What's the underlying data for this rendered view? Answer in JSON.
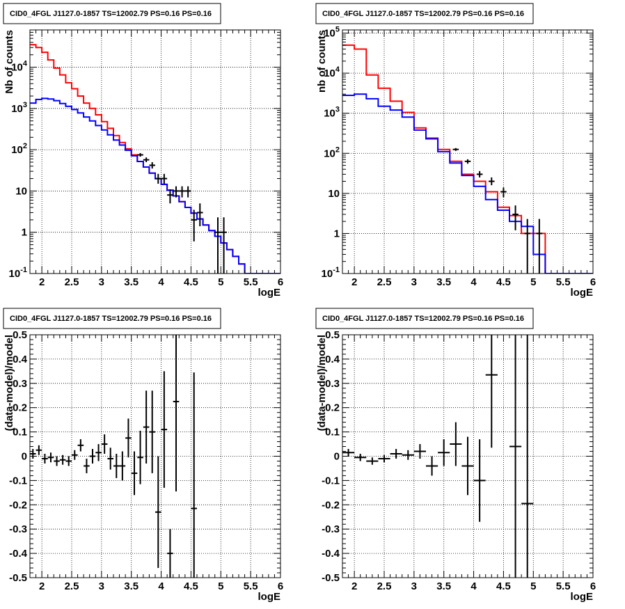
{
  "chart_data": [
    {
      "type": "step-histogram",
      "title": "CID0_4FGL J1127.0-1857 TS=12002.79 PS=0.16 PS=0.16",
      "xlabel": "logE",
      "ylabel": "Nb of counts",
      "xlim": [
        1.8,
        6.0
      ],
      "ylim": [
        0.1,
        80000
      ],
      "log_y": true,
      "grid": true,
      "x_ticks": [
        "2",
        "2.5",
        "3",
        "3.5",
        "4",
        "4.5",
        "5",
        "5.5",
        "6"
      ],
      "y_ticks": [
        "10^-1",
        "1",
        "10",
        "10^2",
        "10^3",
        "10^4"
      ],
      "bin_edges": [
        1.8,
        1.9,
        2.0,
        2.1,
        2.2,
        2.3,
        2.4,
        2.5,
        2.6,
        2.7,
        2.8,
        2.9,
        3.0,
        3.1,
        3.2,
        3.3,
        3.4,
        3.5,
        3.6,
        3.7,
        3.8,
        3.9,
        4.0,
        4.1,
        4.2,
        4.3,
        4.4,
        4.5,
        4.6,
        4.7,
        4.8,
        4.9,
        5.0,
        5.1,
        5.2,
        5.3,
        5.4,
        5.5,
        5.6,
        5.7,
        5.8,
        5.9,
        6.0
      ],
      "series": [
        {
          "color": "#ff0000",
          "values": [
            35000,
            30000,
            23000,
            15000,
            9500,
            6500,
            4200,
            3000,
            2000,
            1350,
            1000,
            700,
            480,
            330,
            220,
            150,
            105,
            75,
            52,
            38,
            27,
            20,
            14.5,
            10.5,
            7.6,
            5.5,
            4,
            2.9,
            2.1,
            1.5,
            1.1,
            0.8,
            0.55,
            0.38,
            0.26,
            0.17,
            0.1,
            0.1,
            0.1,
            0.1,
            0.1,
            0.1
          ]
        },
        {
          "color": "#0000ff",
          "values": [
            1350,
            1650,
            1750,
            1700,
            1550,
            1320,
            1130,
            940,
            780,
            620,
            500,
            385,
            300,
            230,
            172,
            130,
            97,
            71,
            52,
            38,
            27,
            20,
            14.5,
            10.5,
            7.6,
            5.5,
            4,
            2.9,
            2.1,
            1.5,
            1.1,
            0.8,
            0.55,
            0.38,
            0.26,
            0.17,
            0.1,
            0.1,
            0.1,
            0.1,
            0.1,
            0.1
          ]
        }
      ],
      "points": [
        {
          "x": 3.65,
          "y": 75,
          "ylo": 68,
          "yhi": 83
        },
        {
          "x": 3.75,
          "y": 57,
          "ylo": 50,
          "yhi": 65
        },
        {
          "x": 3.85,
          "y": 42,
          "ylo": 35,
          "yhi": 50
        },
        {
          "x": 3.95,
          "y": 20,
          "ylo": 15,
          "yhi": 26
        },
        {
          "x": 4.05,
          "y": 20,
          "ylo": 15,
          "yhi": 26
        },
        {
          "x": 4.15,
          "y": 8,
          "ylo": 5,
          "yhi": 11
        },
        {
          "x": 4.25,
          "y": 10,
          "ylo": 7,
          "yhi": 13
        },
        {
          "x": 4.35,
          "y": 10,
          "ylo": 7,
          "yhi": 13
        },
        {
          "x": 4.45,
          "y": 10,
          "ylo": 7,
          "yhi": 13
        },
        {
          "x": 4.55,
          "y": 2,
          "ylo": 0.6,
          "yhi": 3.5
        },
        {
          "x": 4.65,
          "y": 3,
          "ylo": 1.4,
          "yhi": 5
        },
        {
          "x": 4.95,
          "y": 1,
          "ylo": 0.1,
          "yhi": 2.3
        },
        {
          "x": 5.05,
          "y": 1,
          "ylo": 0.1,
          "yhi": 2.3
        }
      ]
    },
    {
      "type": "step-histogram",
      "title": "CID0_4FGL J1127.0-1857 TS=12002.79 PS=0.16 PS=0.16",
      "xlabel": "logE",
      "ylabel": "nb of counts",
      "xlim": [
        1.8,
        6.0
      ],
      "ylim": [
        0.1,
        120000
      ],
      "log_y": true,
      "grid": true,
      "x_ticks": [
        "2",
        "2.5",
        "3",
        "3.5",
        "4",
        "4.5",
        "5",
        "5.5",
        "6"
      ],
      "y_ticks": [
        "10^-1",
        "1",
        "10",
        "10^2",
        "10^3",
        "10^4",
        "10^5"
      ],
      "bin_edges": [
        1.8,
        2.0,
        2.2,
        2.4,
        2.6,
        2.8,
        3.0,
        3.2,
        3.4,
        3.6,
        3.8,
        4.0,
        4.2,
        4.4,
        4.6,
        4.8,
        5.0,
        5.2,
        5.4,
        5.6,
        5.8,
        6.0
      ],
      "series": [
        {
          "color": "#ff0000",
          "values": [
            50000,
            40000,
            9000,
            4200,
            2000,
            1050,
            430,
            240,
            125,
            63,
            30,
            20,
            11,
            4.5,
            2.8,
            1,
            1,
            0.1,
            0.1,
            0.1,
            0.1
          ]
        },
        {
          "color": "#0000ff",
          "values": [
            2800,
            3000,
            2300,
            1500,
            1200,
            800,
            380,
            230,
            110,
            57,
            28,
            15,
            7,
            3.8,
            2,
            1.5,
            0.3,
            0.1,
            0.1,
            0.1,
            0.1
          ]
        }
      ],
      "points": [
        {
          "x": 3.7,
          "y": 125,
          "ylo": 115,
          "yhi": 135
        },
        {
          "x": 3.9,
          "y": 63,
          "ylo": 55,
          "yhi": 71
        },
        {
          "x": 4.1,
          "y": 30,
          "ylo": 25,
          "yhi": 36
        },
        {
          "x": 4.3,
          "y": 20,
          "ylo": 16,
          "yhi": 25
        },
        {
          "x": 4.5,
          "y": 11,
          "ylo": 8,
          "yhi": 14
        },
        {
          "x": 4.7,
          "y": 3,
          "ylo": 1.2,
          "yhi": 5
        },
        {
          "x": 4.9,
          "y": 1,
          "ylo": 0.1,
          "yhi": 2.3
        },
        {
          "x": 5.1,
          "y": 1,
          "ylo": 0.1,
          "yhi": 2.3
        }
      ]
    },
    {
      "type": "scatter-errorbars",
      "title": "CID0_4FGL J1127.0-1857 TS=12002.79 PS=0.16 PS=0.16",
      "xlabel": "logE",
      "ylabel": "(data-model)/model",
      "xlim": [
        1.8,
        6.0
      ],
      "ylim": [
        -0.5,
        0.5
      ],
      "grid": true,
      "x_ticks": [
        "2",
        "2.5",
        "3",
        "3.5",
        "4",
        "4.5",
        "5",
        "5.5",
        "6"
      ],
      "y_ticks": [
        "-0.5",
        "-0.4",
        "-0.3",
        "-0.2",
        "-0.1",
        "0",
        "0.1",
        "0.2",
        "0.3",
        "0.4",
        "0.5"
      ],
      "points": [
        {
          "x": 1.85,
          "y": 0.01,
          "xerr": 0.05,
          "yerr": 0.02
        },
        {
          "x": 1.95,
          "y": 0.025,
          "xerr": 0.05,
          "yerr": 0.02
        },
        {
          "x": 2.05,
          "y": -0.01,
          "xerr": 0.05,
          "yerr": 0.02
        },
        {
          "x": 2.15,
          "y": -0.005,
          "xerr": 0.05,
          "yerr": 0.02
        },
        {
          "x": 2.25,
          "y": -0.02,
          "xerr": 0.05,
          "yerr": 0.02
        },
        {
          "x": 2.35,
          "y": -0.015,
          "xerr": 0.05,
          "yerr": 0.02
        },
        {
          "x": 2.45,
          "y": -0.02,
          "xerr": 0.05,
          "yerr": 0.02
        },
        {
          "x": 2.55,
          "y": 0.005,
          "xerr": 0.05,
          "yerr": 0.02
        },
        {
          "x": 2.65,
          "y": 0.045,
          "xerr": 0.05,
          "yerr": 0.025
        },
        {
          "x": 2.75,
          "y": -0.04,
          "xerr": 0.05,
          "yerr": 0.03
        },
        {
          "x": 2.85,
          "y": 0.0,
          "xerr": 0.05,
          "yerr": 0.03
        },
        {
          "x": 2.95,
          "y": 0.015,
          "xerr": 0.05,
          "yerr": 0.035
        },
        {
          "x": 3.05,
          "y": 0.05,
          "xerr": 0.05,
          "yerr": 0.04
        },
        {
          "x": 3.15,
          "y": -0.01,
          "xerr": 0.05,
          "yerr": 0.045
        },
        {
          "x": 3.25,
          "y": -0.04,
          "xerr": 0.05,
          "yerr": 0.05
        },
        {
          "x": 3.35,
          "y": -0.04,
          "xerr": 0.05,
          "yerr": 0.06
        },
        {
          "x": 3.45,
          "y": 0.075,
          "xerr": 0.05,
          "yerr": 0.08
        },
        {
          "x": 3.55,
          "y": -0.07,
          "xerr": 0.05,
          "yerr": 0.09
        },
        {
          "x": 3.65,
          "y": -0.005,
          "xerr": 0.05,
          "yerr": 0.11
        },
        {
          "x": 3.75,
          "y": 0.12,
          "xerr": 0.05,
          "yerr": 0.15
        },
        {
          "x": 3.85,
          "y": 0.1,
          "xerr": 0.05,
          "yerr": 0.17
        },
        {
          "x": 3.95,
          "y": -0.23,
          "xerr": 0.05,
          "yerr": 0.23
        },
        {
          "x": 4.05,
          "y": 0.11,
          "xerr": 0.05,
          "yerr": 0.24
        },
        {
          "x": 4.15,
          "y": -0.4,
          "xerr": 0.05,
          "yerr": 0.1
        },
        {
          "x": 4.25,
          "y": 0.225,
          "xerr": 0.05,
          "yerr": 0.37
        },
        {
          "x": 4.55,
          "y": -0.215,
          "xerr": 0.05,
          "yerr": 0.56
        }
      ]
    },
    {
      "type": "scatter-errorbars",
      "title": "CID0_4FGL J1127.0-1857 TS=12002.79 PS=0.16 PS=0.16",
      "xlabel": "logE",
      "ylabel": "(data-model)/model",
      "xlim": [
        1.8,
        6.0
      ],
      "ylim": [
        -0.5,
        0.5
      ],
      "grid": true,
      "x_ticks": [
        "2",
        "2.5",
        "3",
        "3.5",
        "4",
        "4.5",
        "5",
        "5.5",
        "6"
      ],
      "y_ticks": [
        "-0.5",
        "-0.4",
        "-0.3",
        "-0.2",
        "-0.1",
        "0",
        "0.1",
        "0.2",
        "0.3",
        "0.4",
        "0.5"
      ],
      "points": [
        {
          "x": 1.9,
          "y": 0.015,
          "xerr": 0.1,
          "yerr": 0.015
        },
        {
          "x": 2.1,
          "y": -0.005,
          "xerr": 0.1,
          "yerr": 0.015
        },
        {
          "x": 2.3,
          "y": -0.02,
          "xerr": 0.1,
          "yerr": 0.015
        },
        {
          "x": 2.5,
          "y": -0.01,
          "xerr": 0.1,
          "yerr": 0.015
        },
        {
          "x": 2.7,
          "y": 0.01,
          "xerr": 0.1,
          "yerr": 0.02
        },
        {
          "x": 2.9,
          "y": 0.005,
          "xerr": 0.1,
          "yerr": 0.02
        },
        {
          "x": 3.1,
          "y": 0.02,
          "xerr": 0.1,
          "yerr": 0.03
        },
        {
          "x": 3.3,
          "y": -0.04,
          "xerr": 0.1,
          "yerr": 0.04
        },
        {
          "x": 3.5,
          "y": 0.015,
          "xerr": 0.1,
          "yerr": 0.055
        },
        {
          "x": 3.7,
          "y": 0.05,
          "xerr": 0.1,
          "yerr": 0.09
        },
        {
          "x": 3.9,
          "y": -0.04,
          "xerr": 0.1,
          "yerr": 0.12
        },
        {
          "x": 4.1,
          "y": -0.1,
          "xerr": 0.1,
          "yerr": 0.17
        },
        {
          "x": 4.3,
          "y": 0.335,
          "xerr": 0.1,
          "yerr": 0.3
        },
        {
          "x": 4.7,
          "y": 0.04,
          "xerr": 0.1,
          "yerr": 0.6
        },
        {
          "x": 4.9,
          "y": -0.195,
          "xerr": 0.1,
          "yerr": 0.72
        }
      ]
    }
  ]
}
